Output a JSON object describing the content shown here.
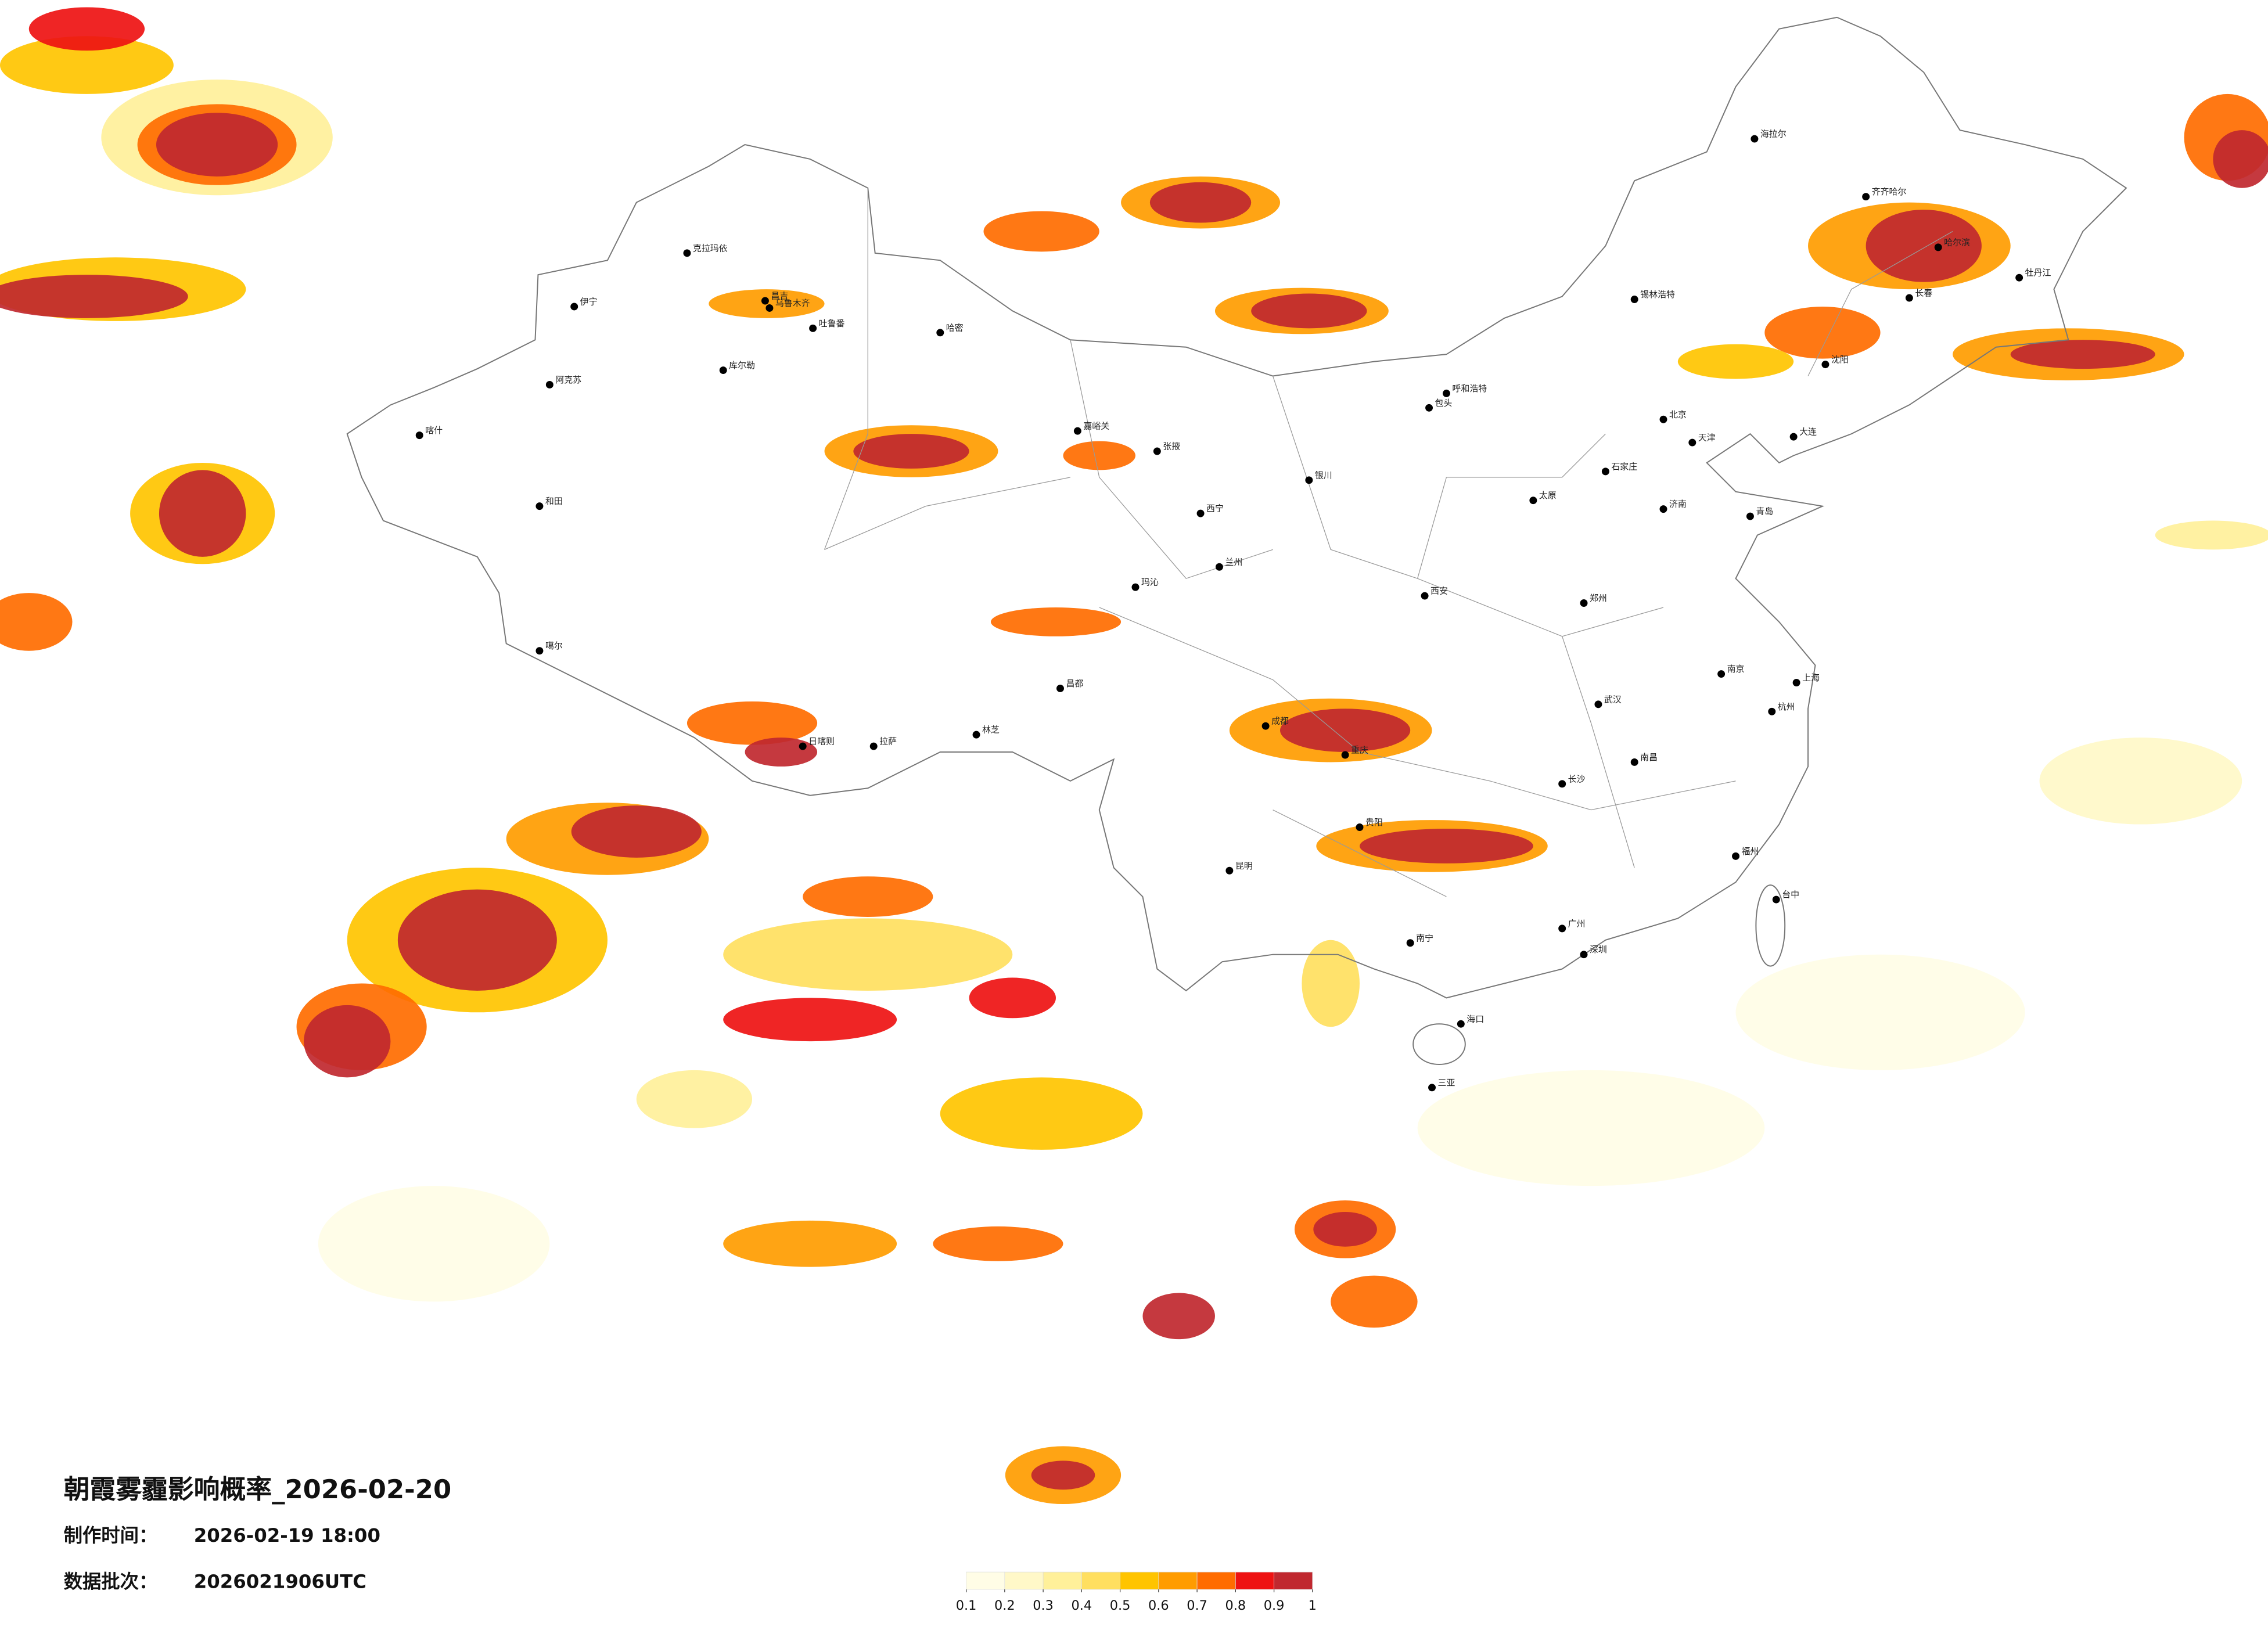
{
  "header": {
    "title": "朝霞雾霾影响概率_2026-02-20",
    "made_label": "制作时间：",
    "made_time": "2026-02-19 18:00",
    "batch_label": "数据批次：",
    "batch": "2026021906UTC"
  },
  "legend": {
    "ticks": [
      0.1,
      0.2,
      0.3,
      0.4,
      0.5,
      0.6,
      0.7,
      0.8,
      0.9,
      1
    ],
    "colors": [
      "#fffde6",
      "#fff8c8",
      "#fff09a",
      "#ffdf60",
      "#ffc400",
      "#ff9c00",
      "#ff6c00",
      "#ee1212",
      "#c0282f"
    ]
  },
  "cities": [
    "伊宁",
    "克拉玛依",
    "昌吉",
    "乌鲁木齐",
    "吐鲁番",
    "哈密",
    "库尔勒",
    "阿克苏",
    "喀什",
    "和田",
    "噶尔",
    "日喀则",
    "拉萨",
    "林芝",
    "昌都",
    "玛沁",
    "嘉峪关",
    "张掖",
    "西宁",
    "兰州",
    "银川",
    "呼和浩特",
    "包头",
    "锡林浩特",
    "海拉尔",
    "齐齐哈尔",
    "哈尔滨",
    "长春",
    "牡丹江",
    "沈阳",
    "大连",
    "北京",
    "天津",
    "石家庄",
    "太原",
    "济南",
    "青岛",
    "西安",
    "郑州",
    "南京",
    "上海",
    "杭州",
    "武汉",
    "长沙",
    "南昌",
    "成都",
    "重庆",
    "贵阳",
    "昆明",
    "南宁",
    "广州",
    "深圳",
    "福州",
    "台中",
    "海口",
    "三亚"
  ]
}
